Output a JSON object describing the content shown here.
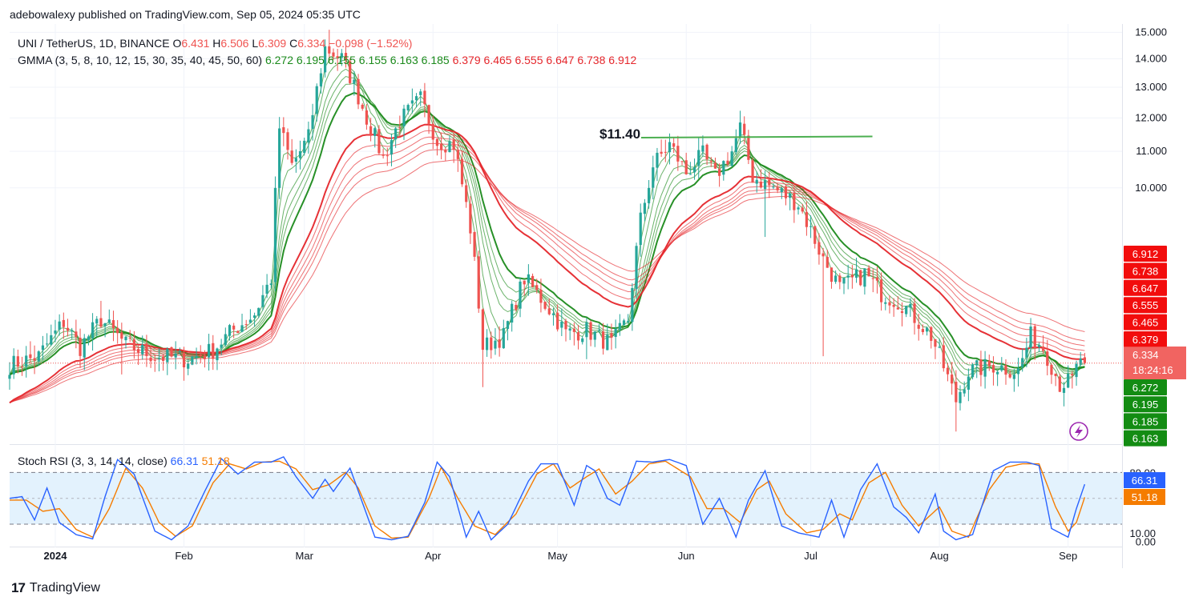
{
  "header": {
    "published": "adebowalexy published on TradingView.com, Sep 05, 2024 05:35 UTC"
  },
  "footer": {
    "brand": "TradingView",
    "brand_mark": "17"
  },
  "legend": {
    "symbol": "UNI / TetherUS, 1D, BINANCE",
    "o_label": "O",
    "o_value": "6.431",
    "h_label": "H",
    "h_value": "6.506",
    "l_label": "L",
    "l_value": "6.309",
    "c_label": "C",
    "c_value": "6.334",
    "change": "−0.098 (−1.52%)",
    "gmma_label": "GMMA (3, 5, 8, 10, 12, 15, 30, 35, 40, 45, 50, 60)",
    "gmma_values": [
      {
        "text": "6.272",
        "color": "#1b8a1b"
      },
      {
        "text": "6.195",
        "color": "#1b8a1b"
      },
      {
        "text": "6.155",
        "color": "#1b8a1b"
      },
      {
        "text": "6.155",
        "color": "#1b8a1b"
      },
      {
        "text": "6.163",
        "color": "#1b8a1b"
      },
      {
        "text": "6.185",
        "color": "#1b8a1b"
      },
      {
        "text": "6.379",
        "color": "#e5262b"
      },
      {
        "text": "6.465",
        "color": "#e5262b"
      },
      {
        "text": "6.555",
        "color": "#e5262b"
      },
      {
        "text": "6.647",
        "color": "#e5262b"
      },
      {
        "text": "6.738",
        "color": "#e5262b"
      },
      {
        "text": "6.912",
        "color": "#e5262b"
      }
    ],
    "stoch_label": "Stoch RSI (3, 3, 14, 14, close)",
    "stoch_k": "66.31",
    "stoch_d": "51.18"
  },
  "colors": {
    "up": "#26a69a",
    "down": "#ef5350",
    "short_ema": "#1b8a1b",
    "long_ema": "#e5262b",
    "k_line": "#2962ff",
    "d_line": "#f57c00",
    "band_fill": "#e3f2fd",
    "annotation": "#4caf50"
  },
  "chart_data": {
    "type": "candlestick",
    "title": "UNI / TetherUS, 1D, BINANCE",
    "y_axis_labels": [
      "15.000",
      "14.000",
      "13.000",
      "12.000",
      "11.000",
      "10.000"
    ],
    "x_axis_labels": [
      "2024",
      "Feb",
      "Mar",
      "Apr",
      "May",
      "Jun",
      "Jul",
      "Aug",
      "Sep"
    ],
    "price_scale": "log",
    "ylim": [
      5.15,
      15.2
    ],
    "x_range_days": [
      "2023-12-21",
      "2024-09-14"
    ],
    "last_price": 6.334,
    "last_price_label": "6.334",
    "countdown": "18:24:16",
    "annotation": {
      "text": "$11.40",
      "level": 11.4,
      "from": "2024-05-25",
      "to": "2024-07-12"
    },
    "price_tags": [
      {
        "text": "6.912",
        "type": "red"
      },
      {
        "text": "6.738",
        "type": "red"
      },
      {
        "text": "6.647",
        "type": "red"
      },
      {
        "text": "6.555",
        "type": "red"
      },
      {
        "text": "6.465",
        "type": "red"
      },
      {
        "text": "6.379",
        "type": "red"
      },
      {
        "text": "6.272",
        "type": "green"
      },
      {
        "text": "6.195",
        "type": "green"
      },
      {
        "text": "6.185",
        "type": "green"
      },
      {
        "text": "6.163",
        "type": "green"
      }
    ],
    "price_anchors": [
      [
        "2023-12-21",
        6.3
      ],
      [
        "2023-12-28",
        6.45
      ],
      [
        "2024-01-03",
        7.05
      ],
      [
        "2024-01-07",
        6.6
      ],
      [
        "2024-01-12",
        7.1
      ],
      [
        "2024-01-18",
        6.65
      ],
      [
        "2024-01-25",
        6.45
      ],
      [
        "2024-02-02",
        6.4
      ],
      [
        "2024-02-08",
        6.55
      ],
      [
        "2024-02-12",
        6.85
      ],
      [
        "2024-02-18",
        7.2
      ],
      [
        "2024-02-22",
        7.9
      ],
      [
        "2024-02-24",
        11.7
      ],
      [
        "2024-02-27",
        10.6
      ],
      [
        "2024-03-02",
        11.4
      ],
      [
        "2024-03-06",
        14.4
      ],
      [
        "2024-03-10",
        14.0
      ],
      [
        "2024-03-12",
        13.4
      ],
      [
        "2024-03-16",
        12.0
      ],
      [
        "2024-03-20",
        10.8
      ],
      [
        "2024-03-24",
        11.9
      ],
      [
        "2024-03-29",
        12.6
      ],
      [
        "2024-04-02",
        11.3
      ],
      [
        "2024-04-06",
        11.2
      ],
      [
        "2024-04-10",
        9.0
      ],
      [
        "2024-04-13",
        6.6
      ],
      [
        "2024-04-18",
        6.8
      ],
      [
        "2024-04-23",
        7.9
      ],
      [
        "2024-04-29",
        7.3
      ],
      [
        "2024-05-03",
        6.85
      ],
      [
        "2024-05-08",
        6.9
      ],
      [
        "2024-05-14",
        6.65
      ],
      [
        "2024-05-18",
        7.1
      ],
      [
        "2024-05-21",
        9.2
      ],
      [
        "2024-05-24",
        10.6
      ],
      [
        "2024-05-28",
        11.2
      ],
      [
        "2024-06-01",
        10.4
      ],
      [
        "2024-06-05",
        10.9
      ],
      [
        "2024-06-08",
        10.3
      ],
      [
        "2024-06-12",
        11.0
      ],
      [
        "2024-06-14",
        11.7
      ],
      [
        "2024-06-17",
        10.3
      ],
      [
        "2024-06-22",
        10.0
      ],
      [
        "2024-06-28",
        9.6
      ],
      [
        "2024-07-04",
        8.3
      ],
      [
        "2024-07-08",
        7.7
      ],
      [
        "2024-07-14",
        8.0
      ],
      [
        "2024-07-18",
        7.6
      ],
      [
        "2024-07-23",
        7.4
      ],
      [
        "2024-07-30",
        6.8
      ],
      [
        "2024-08-05",
        5.75
      ],
      [
        "2024-08-08",
        6.2
      ],
      [
        "2024-08-14",
        6.3
      ],
      [
        "2024-08-20",
        6.2
      ],
      [
        "2024-08-23",
        6.8
      ],
      [
        "2024-08-26",
        6.6
      ],
      [
        "2024-08-30",
        6.0
      ],
      [
        "2024-09-02",
        6.05
      ],
      [
        "2024-09-04",
        6.43
      ],
      [
        "2024-09-05",
        6.334
      ]
    ],
    "wicks": [
      {
        "date": "2023-12-25",
        "low": 6.1
      },
      {
        "date": "2024-01-12",
        "high": 7.45
      },
      {
        "date": "2024-01-17",
        "low": 6.15
      },
      {
        "date": "2024-02-01",
        "low": 6.05
      },
      {
        "date": "2024-03-07",
        "high": 15.1
      },
      {
        "date": "2024-04-13",
        "low": 5.95
      },
      {
        "date": "2024-05-08",
        "low": 6.4
      },
      {
        "date": "2024-06-15",
        "high": 12.05
      },
      {
        "date": "2024-06-20",
        "low": 8.8
      },
      {
        "date": "2024-07-04",
        "low": 6.45
      },
      {
        "date": "2024-08-05",
        "low": 5.3
      },
      {
        "date": "2024-09-04",
        "high": 6.52
      }
    ],
    "stoch_rsi": {
      "ylim": [
        -5,
        110
      ],
      "upper_band": 80,
      "lower_band": 20,
      "y_axis_labels": [
        "80.00",
        "10.00",
        "0.00"
      ],
      "k_label": "66.31",
      "d_label": "51.18",
      "k_anchors": [
        [
          "2023-12-21",
          50
        ],
        [
          "2023-12-24",
          52
        ],
        [
          "2023-12-27",
          25
        ],
        [
          "2023-12-30",
          62
        ],
        [
          "2024-01-02",
          22
        ],
        [
          "2024-01-06",
          8
        ],
        [
          "2024-01-10",
          3
        ],
        [
          "2024-01-13",
          52
        ],
        [
          "2024-01-16",
          95
        ],
        [
          "2024-01-20",
          78
        ],
        [
          "2024-01-25",
          12
        ],
        [
          "2024-01-29",
          2
        ],
        [
          "2024-02-02",
          18
        ],
        [
          "2024-02-06",
          58
        ],
        [
          "2024-02-10",
          96
        ],
        [
          "2024-02-14",
          78
        ],
        [
          "2024-02-18",
          92
        ],
        [
          "2024-02-22",
          92
        ],
        [
          "2024-02-25",
          98
        ],
        [
          "2024-02-28",
          75
        ],
        [
          "2024-03-03",
          50
        ],
        [
          "2024-03-06",
          72
        ],
        [
          "2024-03-08",
          58
        ],
        [
          "2024-03-12",
          85
        ],
        [
          "2024-03-15",
          45
        ],
        [
          "2024-03-18",
          5
        ],
        [
          "2024-03-22",
          2
        ],
        [
          "2024-03-26",
          6
        ],
        [
          "2024-03-30",
          45
        ],
        [
          "2024-04-02",
          92
        ],
        [
          "2024-04-05",
          75
        ],
        [
          "2024-04-09",
          5
        ],
        [
          "2024-04-12",
          35
        ],
        [
          "2024-04-15",
          2
        ],
        [
          "2024-04-19",
          20
        ],
        [
          "2024-04-24",
          70
        ],
        [
          "2024-04-27",
          90
        ],
        [
          "2024-05-01",
          90
        ],
        [
          "2024-05-05",
          42
        ],
        [
          "2024-05-08",
          88
        ],
        [
          "2024-05-10",
          82
        ],
        [
          "2024-05-13",
          50
        ],
        [
          "2024-05-16",
          42
        ],
        [
          "2024-05-20",
          93
        ],
        [
          "2024-05-24",
          92
        ],
        [
          "2024-05-28",
          95
        ],
        [
          "2024-06-01",
          88
        ],
        [
          "2024-06-05",
          20
        ],
        [
          "2024-06-09",
          50
        ],
        [
          "2024-06-13",
          5
        ],
        [
          "2024-06-16",
          48
        ],
        [
          "2024-06-20",
          82
        ],
        [
          "2024-06-24",
          18
        ],
        [
          "2024-06-28",
          10
        ],
        [
          "2024-07-03",
          5
        ],
        [
          "2024-07-06",
          48
        ],
        [
          "2024-07-09",
          5
        ],
        [
          "2024-07-13",
          60
        ],
        [
          "2024-07-17",
          90
        ],
        [
          "2024-07-21",
          40
        ],
        [
          "2024-07-24",
          28
        ],
        [
          "2024-07-27",
          10
        ],
        [
          "2024-07-31",
          55
        ],
        [
          "2024-08-02",
          12
        ],
        [
          "2024-08-05",
          2
        ],
        [
          "2024-08-09",
          8
        ],
        [
          "2024-08-14",
          82
        ],
        [
          "2024-08-18",
          92
        ],
        [
          "2024-08-22",
          92
        ],
        [
          "2024-08-25",
          88
        ],
        [
          "2024-08-28",
          15
        ],
        [
          "2024-09-01",
          5
        ],
        [
          "2024-09-03",
          38
        ],
        [
          "2024-09-05",
          66.31
        ]
      ],
      "d_anchors": [
        [
          "2023-12-21",
          48
        ],
        [
          "2023-12-25",
          48
        ],
        [
          "2023-12-29",
          35
        ],
        [
          "2024-01-02",
          38
        ],
        [
          "2024-01-06",
          14
        ],
        [
          "2024-01-10",
          5
        ],
        [
          "2024-01-14",
          38
        ],
        [
          "2024-01-18",
          85
        ],
        [
          "2024-01-22",
          62
        ],
        [
          "2024-01-26",
          22
        ],
        [
          "2024-01-30",
          6
        ],
        [
          "2024-02-03",
          18
        ],
        [
          "2024-02-08",
          68
        ],
        [
          "2024-02-12",
          90
        ],
        [
          "2024-02-16",
          84
        ],
        [
          "2024-02-20",
          92
        ],
        [
          "2024-02-24",
          93
        ],
        [
          "2024-02-28",
          84
        ],
        [
          "2024-03-03",
          60
        ],
        [
          "2024-03-07",
          66
        ],
        [
          "2024-03-11",
          80
        ],
        [
          "2024-03-14",
          62
        ],
        [
          "2024-03-18",
          18
        ],
        [
          "2024-03-22",
          4
        ],
        [
          "2024-03-26",
          5
        ],
        [
          "2024-03-31",
          50
        ],
        [
          "2024-04-03",
          86
        ],
        [
          "2024-04-07",
          50
        ],
        [
          "2024-04-11",
          18
        ],
        [
          "2024-04-16",
          8
        ],
        [
          "2024-04-21",
          32
        ],
        [
          "2024-04-26",
          78
        ],
        [
          "2024-04-30",
          90
        ],
        [
          "2024-05-04",
          62
        ],
        [
          "2024-05-08",
          75
        ],
        [
          "2024-05-11",
          84
        ],
        [
          "2024-05-15",
          55
        ],
        [
          "2024-05-19",
          70
        ],
        [
          "2024-05-23",
          90
        ],
        [
          "2024-05-27",
          93
        ],
        [
          "2024-06-02",
          75
        ],
        [
          "2024-06-06",
          38
        ],
        [
          "2024-06-10",
          38
        ],
        [
          "2024-06-14",
          22
        ],
        [
          "2024-06-18",
          60
        ],
        [
          "2024-06-21",
          70
        ],
        [
          "2024-06-25",
          32
        ],
        [
          "2024-06-30",
          10
        ],
        [
          "2024-07-04",
          14
        ],
        [
          "2024-07-08",
          32
        ],
        [
          "2024-07-11",
          25
        ],
        [
          "2024-07-15",
          68
        ],
        [
          "2024-07-19",
          80
        ],
        [
          "2024-07-23",
          42
        ],
        [
          "2024-07-27",
          18
        ],
        [
          "2024-08-01",
          40
        ],
        [
          "2024-08-04",
          12
        ],
        [
          "2024-08-08",
          5
        ],
        [
          "2024-08-13",
          60
        ],
        [
          "2024-08-17",
          86
        ],
        [
          "2024-08-21",
          90
        ],
        [
          "2024-08-25",
          90
        ],
        [
          "2024-08-29",
          40
        ],
        [
          "2024-09-01",
          12
        ],
        [
          "2024-09-03",
          22
        ],
        [
          "2024-09-05",
          51.18
        ]
      ]
    }
  }
}
